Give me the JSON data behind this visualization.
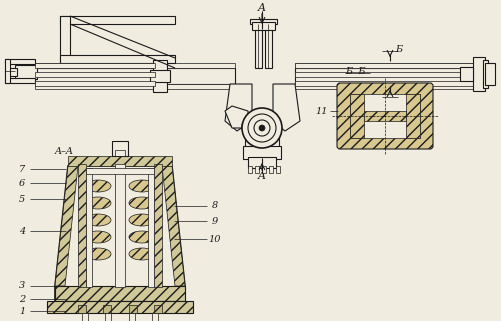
{
  "bg": "#f0ece0",
  "lc": "#1a1a1a",
  "fc_light": "#e8e0c8",
  "fc_hatch": "#d8cca0",
  "figsize": [
    5.01,
    3.21
  ],
  "dpi": 100,
  "labels": {
    "AA": "A–A",
    "BB": "Б  Б",
    "A": "A",
    "B": "Б",
    "nums": [
      "1",
      "2",
      "3",
      "4",
      "5",
      "6",
      "7",
      "8",
      "9",
      "10",
      "11"
    ]
  }
}
